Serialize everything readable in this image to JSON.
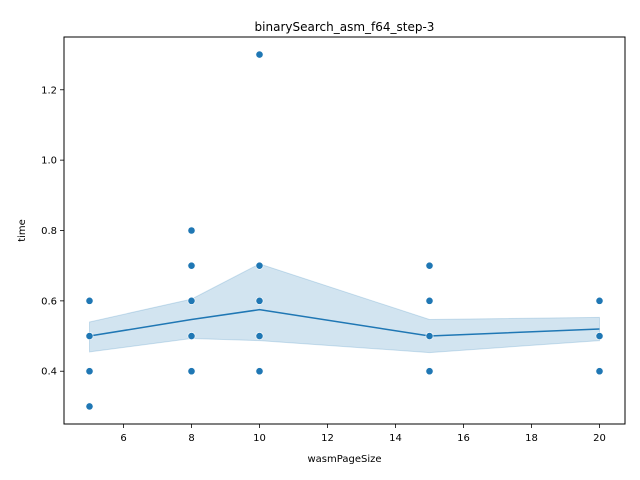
{
  "chart_data": {
    "type": "scatter",
    "title": "binarySearch_asm_f64_step-3",
    "xlabel": "wasmPageSize",
    "ylabel": "time",
    "xlim": [
      4.25,
      20.75
    ],
    "ylim": [
      0.25,
      1.35
    ],
    "xticks": [
      6,
      8,
      10,
      12,
      14,
      16,
      18,
      20
    ],
    "yticks": [
      0.4,
      0.6,
      0.8,
      1.0,
      1.2
    ],
    "xtick_labels": [
      "6",
      "8",
      "10",
      "12",
      "14",
      "16",
      "18",
      "20"
    ],
    "ytick_labels": [
      "0.4",
      "0.6",
      "0.8",
      "1.0",
      "1.2"
    ],
    "grid": false,
    "colors": {
      "points": "#1f77b4",
      "line": "#1f77b4",
      "band": "#1f77b4"
    },
    "points": [
      {
        "x": 5,
        "y": 0.6
      },
      {
        "x": 5,
        "y": 0.5
      },
      {
        "x": 5,
        "y": 0.4
      },
      {
        "x": 5,
        "y": 0.3
      },
      {
        "x": 8,
        "y": 0.8
      },
      {
        "x": 8,
        "y": 0.7
      },
      {
        "x": 8,
        "y": 0.6
      },
      {
        "x": 8,
        "y": 0.5
      },
      {
        "x": 8,
        "y": 0.4
      },
      {
        "x": 10,
        "y": 1.3
      },
      {
        "x": 10,
        "y": 0.7
      },
      {
        "x": 10,
        "y": 0.6
      },
      {
        "x": 10,
        "y": 0.5
      },
      {
        "x": 10,
        "y": 0.4
      },
      {
        "x": 15,
        "y": 0.7
      },
      {
        "x": 15,
        "y": 0.6
      },
      {
        "x": 15,
        "y": 0.5
      },
      {
        "x": 15,
        "y": 0.4
      },
      {
        "x": 20,
        "y": 0.6
      },
      {
        "x": 20,
        "y": 0.5
      },
      {
        "x": 20,
        "y": 0.4
      }
    ],
    "mean_line": {
      "x": [
        5,
        8,
        10,
        15,
        20
      ],
      "y": [
        0.5,
        0.547,
        0.575,
        0.5,
        0.52
      ]
    },
    "confidence_band": {
      "x": [
        5,
        8,
        10,
        15,
        20
      ],
      "lower": [
        0.455,
        0.493,
        0.487,
        0.453,
        0.487
      ],
      "upper": [
        0.54,
        0.605,
        0.705,
        0.547,
        0.553
      ]
    }
  }
}
